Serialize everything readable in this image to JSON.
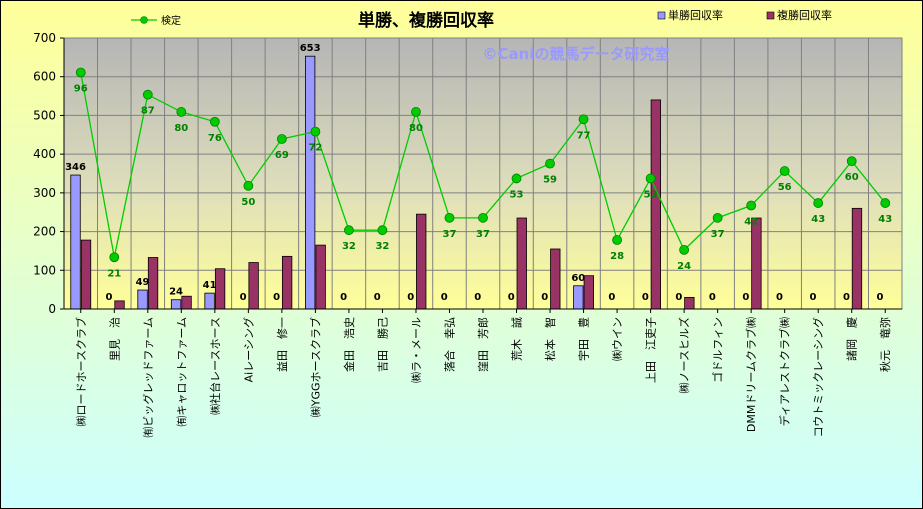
{
  "chart_data": {
    "type": "bar",
    "title": "単勝、複勝回収率",
    "watermark": "©Caniの競馬データ研究室",
    "categories": [
      "㈱ロードホースクラブ",
      "里見　治",
      "㈲ビッグレッドファーム",
      "㈲キャロットファーム",
      "㈱社台レースホース",
      "Aiレーシング",
      "益田　修一",
      "㈱YGGホースクラブ",
      "金田　浩史",
      "吉田　勝己",
      "㈱ラ・メール",
      "落合　幸弘",
      "窪田　芳郎",
      "荒木　誠",
      "松本　智",
      "宇田　豊",
      "㈱ウイン",
      "上田　江吏子",
      "㈱ノースヒルズ",
      "ゴドルフィン",
      "DMMドリームクラブ㈱",
      "ディアレストクラブ㈱",
      "コウトミックレーシング",
      "諸岡　慶",
      "秋元　竜弥"
    ],
    "series": [
      {
        "name": "単勝回収率",
        "kind": "bar",
        "color": "#9999FF",
        "values": [
          346,
          0,
          49,
          24,
          41,
          0,
          0,
          653,
          0,
          0,
          0,
          0,
          0,
          0,
          0,
          60,
          0,
          0,
          0,
          0,
          0,
          0,
          0,
          0,
          0
        ]
      },
      {
        "name": "複勝回収率",
        "kind": "bar",
        "color": "#993366",
        "values": [
          178,
          21,
          133,
          33,
          104,
          120,
          136,
          165,
          0,
          0,
          245,
          0,
          0,
          235,
          155,
          86,
          0,
          540,
          30,
          0,
          235,
          0,
          0,
          260,
          0
        ]
      },
      {
        "name": "検定",
        "kind": "line",
        "color": "#00CC00",
        "label_color": "#008000",
        "values": [
          96,
          21,
          87,
          80,
          76,
          50,
          69,
          72,
          32,
          32,
          80,
          37,
          37,
          53,
          59,
          77,
          28,
          53,
          24,
          37,
          42,
          56,
          43,
          60,
          43
        ]
      }
    ],
    "ylim": [
      0,
      700
    ],
    "yticks": [
      0,
      100,
      200,
      300,
      400,
      500,
      600,
      700
    ],
    "line_ylim": [
      0,
      110
    ],
    "grid": true,
    "legend_position": "top"
  }
}
